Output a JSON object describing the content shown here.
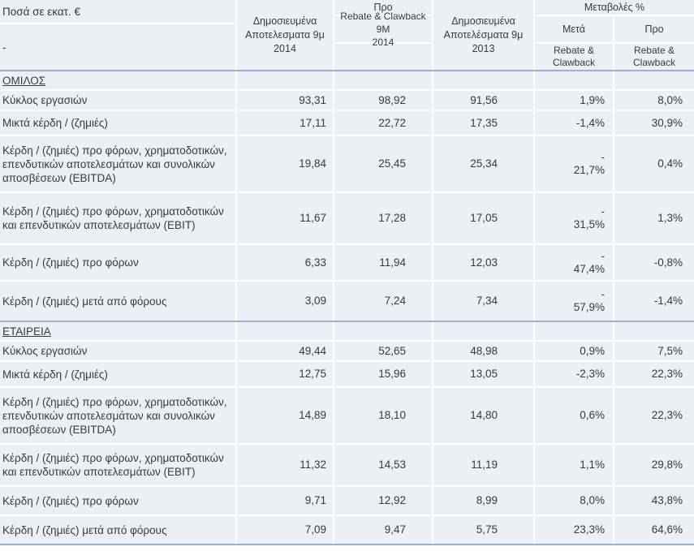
{
  "meta": {
    "units_label": "Ποσά σε εκατ. €",
    "corner_dash": "-",
    "colors": {
      "cell_bg": "#edeff6",
      "gridline": "#ffffff",
      "section_line": "#95b3d7",
      "text": "#3a3a3a"
    }
  },
  "columns": {
    "published_2014": "Δημοσιευμένα\nΑποτελεσματα 9μ\n2014",
    "pre_top": "Προ",
    "pre_sub": "Rebate & Clawback 9M\n2014",
    "published_2013": "Δημοσιευμένα\nΑποτελέσματα 9μ 2013",
    "changes_group": "Μεταβολές %",
    "after_label": "Μετά",
    "pre_label": "Προ",
    "after_sub": "Rebate &\nClawback",
    "pre_sub2": "Rebate &\nClawback"
  },
  "rows": [
    {
      "type": "section",
      "label": "ΟΜΙΛΟΣ"
    },
    {
      "label": "Κύκλος εργασιών",
      "published_9m_2014": "93,31",
      "pre_rebate_9m_2014": "98,92",
      "published_9m_2013": "91,56",
      "change_after": "1,9%",
      "change_pre": "8,0%"
    },
    {
      "label": "Μικτά κέρδη / (ζημιές)",
      "published_9m_2014": "17,11",
      "pre_rebate_9m_2014": "22,72",
      "published_9m_2013": "17,35",
      "change_after": "-1,4%",
      "change_pre": "30,9%"
    },
    {
      "label": "Κέρδη / (ζημιές) προ φόρων, χρηματοδοτικών, επενδυτικών αποτελεσμάτων και συνολικών αποσβέσεων (EBITDA)",
      "published_9m_2014": "19,84",
      "pre_rebate_9m_2014": "25,45",
      "published_9m_2013": "25,34",
      "change_after": "-\n21,7%",
      "change_pre": "0,4%"
    },
    {
      "label": "Κέρδη / (ζημιές) προ φόρων, χρηματοδοτικών και επενδυτικών αποτελεσμάτων (EBIT)",
      "published_9m_2014": "11,67",
      "pre_rebate_9m_2014": "17,28",
      "published_9m_2013": "17,05",
      "change_after": "-\n31,5%",
      "change_pre": "1,3%"
    },
    {
      "label": "Κέρδη / (ζημιές) προ φόρων",
      "published_9m_2014": "6,33",
      "pre_rebate_9m_2014": "11,94",
      "published_9m_2013": "12,03",
      "change_after": "-\n47,4%",
      "change_pre": "-0,8%"
    },
    {
      "label": "Κέρδη / (ζημιές) μετά από φόρους",
      "published_9m_2014": "3,09",
      "pre_rebate_9m_2014": "7,24",
      "published_9m_2013": "7,34",
      "change_after": "-\n57,9%",
      "change_pre": "-1,4%"
    },
    {
      "type": "section",
      "label": "ΕΤΑΙΡΕΙΑ"
    },
    {
      "label": "Κύκλος εργασιών",
      "published_9m_2014": "49,44",
      "pre_rebate_9m_2014": "52,65",
      "published_9m_2013": "48,98",
      "change_after": "0,9%",
      "change_pre": "7,5%"
    },
    {
      "label": "Μικτά κέρδη / (ζημιές)",
      "published_9m_2014": "12,75",
      "pre_rebate_9m_2014": "15,96",
      "published_9m_2013": "13,05",
      "change_after": "-2,3%",
      "change_pre": "22,3%"
    },
    {
      "label": "Κέρδη / (ζημιές) προ φόρων, χρηματοδοτικών, επενδυτικών αποτελεσμάτων και συνολικών αποσβέσεων (EBITDA)",
      "published_9m_2014": "14,89",
      "pre_rebate_9m_2014": "18,10",
      "published_9m_2013": "14,80",
      "change_after": "0,6%",
      "change_pre": "22,3%"
    },
    {
      "label": "Κέρδη / (ζημιές) προ φόρων, χρηματοδοτικών και επενδυτικών αποτελεσμάτων (EBIT)",
      "published_9m_2014": "11,32",
      "pre_rebate_9m_2014": "14,53",
      "published_9m_2013": "11,19",
      "change_after": "1,1%",
      "change_pre": "29,8%"
    },
    {
      "label": "Κέρδη / (ζημιές) προ φόρων",
      "published_9m_2014": "9,71",
      "pre_rebate_9m_2014": "12,92",
      "published_9m_2013": "8,99",
      "change_after": "8,0%",
      "change_pre": "43,8%"
    },
    {
      "label": "Κέρδη / (ζημιές) μετά από φόρους",
      "published_9m_2014": "7,09",
      "pre_rebate_9m_2014": "9,47",
      "published_9m_2013": "5,75",
      "change_after": "23,3%",
      "change_pre": "64,6%"
    }
  ]
}
